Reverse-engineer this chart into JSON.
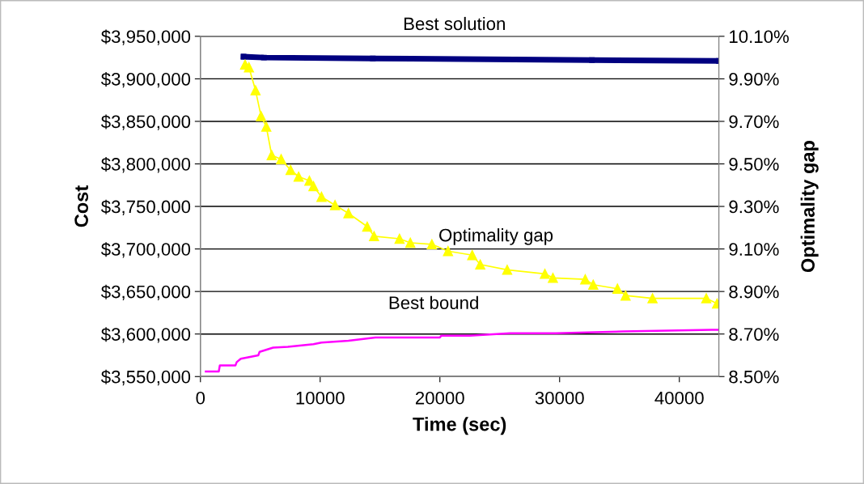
{
  "chart_data": {
    "type": "line",
    "xlabel": "Time (sec)",
    "ylabel": "Cost",
    "y2label": "Optimality gap",
    "grid": "y",
    "legend": false,
    "xlim": [
      0,
      43300
    ],
    "xticks": [
      0,
      10000,
      20000,
      30000,
      40000
    ],
    "ylim": [
      3550000,
      3950000
    ],
    "yticks": [
      {
        "value": 3550000,
        "label": "$3,550,000"
      },
      {
        "value": 3600000,
        "label": "$3,600,000"
      },
      {
        "value": 3650000,
        "label": "$3,650,000"
      },
      {
        "value": 3700000,
        "label": "$3,700,000"
      },
      {
        "value": 3750000,
        "label": "$3,750,000"
      },
      {
        "value": 3800000,
        "label": "$3,800,000"
      },
      {
        "value": 3850000,
        "label": "$3,850,000"
      },
      {
        "value": 3900000,
        "label": "$3,900,000"
      },
      {
        "value": 3950000,
        "label": "$3,950,000"
      }
    ],
    "y2lim": [
      8.5,
      10.1
    ],
    "y2ticks": [
      {
        "value": 8.5,
        "label": "8.50%"
      },
      {
        "value": 8.7,
        "label": "8.70%"
      },
      {
        "value": 8.9,
        "label": "8.90%"
      },
      {
        "value": 9.1,
        "label": "9.10%"
      },
      {
        "value": 9.3,
        "label": "9.30%"
      },
      {
        "value": 9.5,
        "label": "9.50%"
      },
      {
        "value": 9.7,
        "label": "9.70%"
      },
      {
        "value": 9.9,
        "label": "9.90%"
      },
      {
        "value": 10.1,
        "label": "10.10%"
      }
    ],
    "series": [
      {
        "name": "Best solution",
        "color": "#000080",
        "marker": "square",
        "x": [
          3600,
          5300,
          14400,
          32700,
          43300
        ],
        "values": [
          3926000,
          3925000,
          3924000,
          3922000,
          3921000
        ]
      },
      {
        "name": "Optimality gap",
        "color": "#ffff00",
        "marker": "triangle",
        "axis": "y2",
        "x": [
          3730,
          4050,
          4600,
          5060,
          5500,
          5950,
          6740,
          7530,
          8200,
          9100,
          9440,
          10110,
          11240,
          12360,
          13930,
          14500,
          16630,
          17530,
          19330,
          20680,
          22700,
          23370,
          25620,
          28770,
          29440,
          32140,
          32810,
          34830,
          35510,
          37760,
          42250,
          43150
        ],
        "values": [
          9.967,
          9.954,
          9.846,
          9.725,
          9.675,
          9.541,
          9.522,
          9.471,
          9.44,
          9.421,
          9.395,
          9.345,
          9.306,
          9.268,
          9.205,
          9.16,
          9.148,
          9.129,
          9.122,
          9.09,
          9.071,
          9.027,
          9.002,
          8.983,
          8.964,
          8.957,
          8.932,
          8.913,
          8.881,
          8.868,
          8.868,
          8.843
        ]
      },
      {
        "name": "Best bound",
        "color": "#ff00ff",
        "marker": "none",
        "x": [
          450,
          1530,
          1620,
          2920,
          3030,
          3370,
          4830,
          4940,
          6070,
          7300,
          9440,
          10110,
          12360,
          14610,
          20000,
          20110,
          22480,
          25850,
          29670,
          35290,
          42700,
          43300
        ],
        "values": [
          3556000,
          3556000,
          3563000,
          3563000,
          3567000,
          3571000,
          3575000,
          3579000,
          3584000,
          3585000,
          3588000,
          3590000,
          3592000,
          3596000,
          3596000,
          3598000,
          3598000,
          3601000,
          3601000,
          3603000,
          3605000,
          3605000
        ]
      }
    ]
  }
}
